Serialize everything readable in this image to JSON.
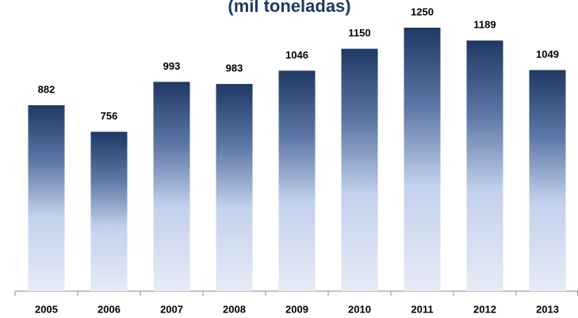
{
  "chart_data": {
    "type": "bar",
    "title": "(mil toneladas)",
    "categories": [
      "2005",
      "2006",
      "2007",
      "2008",
      "2009",
      "2010",
      "2011",
      "2012",
      "2013"
    ],
    "values": [
      882,
      756,
      993,
      983,
      1046,
      1150,
      1250,
      1189,
      1049
    ],
    "color": "#1f3864",
    "ylim": [
      0,
      1250
    ]
  }
}
